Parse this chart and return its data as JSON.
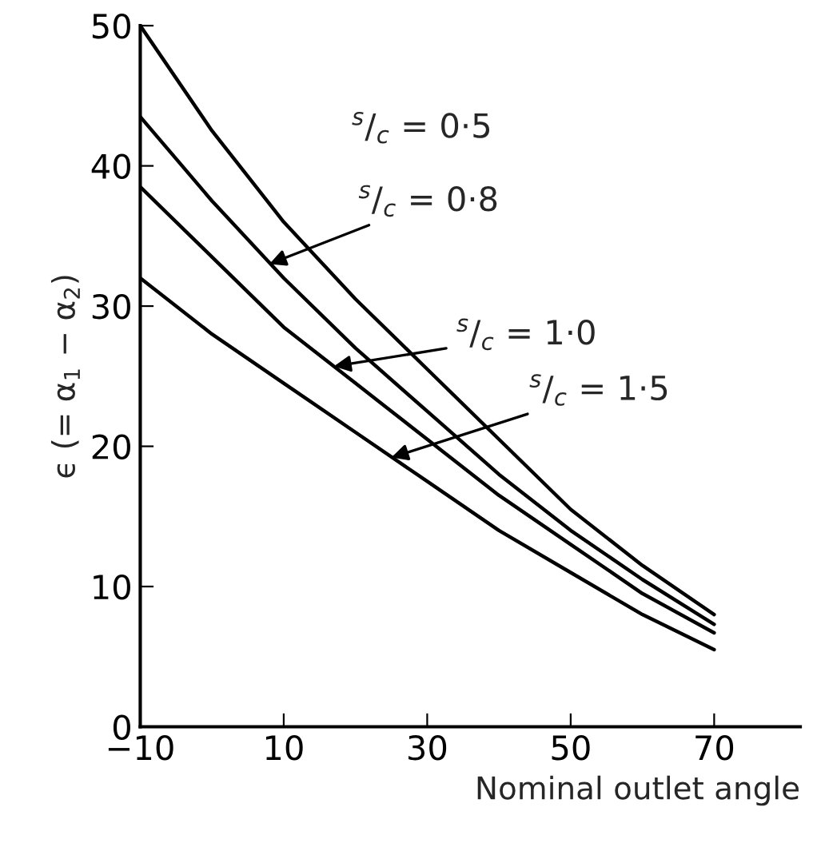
{
  "chart_data": {
    "type": "line",
    "xlabel": "Nominal outlet angle",
    "ylabel": "ϵ (= α$_{1}$ − α$_{2}$)",
    "x": [
      -10,
      0,
      10,
      20,
      30,
      40,
      50,
      60,
      70
    ],
    "series": [
      {
        "color": "#000000",
        "values": [
          50,
          42.5,
          36,
          30.5,
          25.5,
          20.5,
          15.5,
          11.5,
          8
        ]
      },
      {
        "color": "#000000",
        "values": [
          43.5,
          37.5,
          32,
          27,
          22.5,
          18,
          14,
          10.5,
          7.3
        ]
      },
      {
        "color": "#000000",
        "values": [
          38.5,
          33.5,
          28.5,
          24.5,
          20.5,
          16.5,
          13,
          9.5,
          6.7
        ]
      },
      {
        "color": "#000000",
        "values": [
          32,
          28,
          24.5,
          21,
          17.5,
          14,
          11,
          8,
          5.5
        ]
      }
    ],
    "annotations": [
      "$^{s}$/$_{c}$ = 0·5",
      {
        "text": "$^{s}$/$_{c}$ = 0·8",
        "x": 8,
        "y": 33
      },
      {
        "text": "$^{s}$/$_{c}$ = 1·0",
        "x": 17,
        "y": 25.7
      },
      {
        "text": "$^{s}$/$_{c}$ = 1·5",
        "x": 25,
        "y": 19.2
      }
    ],
    "xlim": [
      -10,
      82
    ],
    "ylim": [
      0,
      50
    ],
    "xticks": [
      -10,
      10,
      30,
      50,
      70
    ],
    "yticks": [
      0,
      10,
      20,
      30,
      40,
      50
    ],
    "grid": false,
    "legend": false,
    "marker": "none",
    "line_style": "solid"
  }
}
